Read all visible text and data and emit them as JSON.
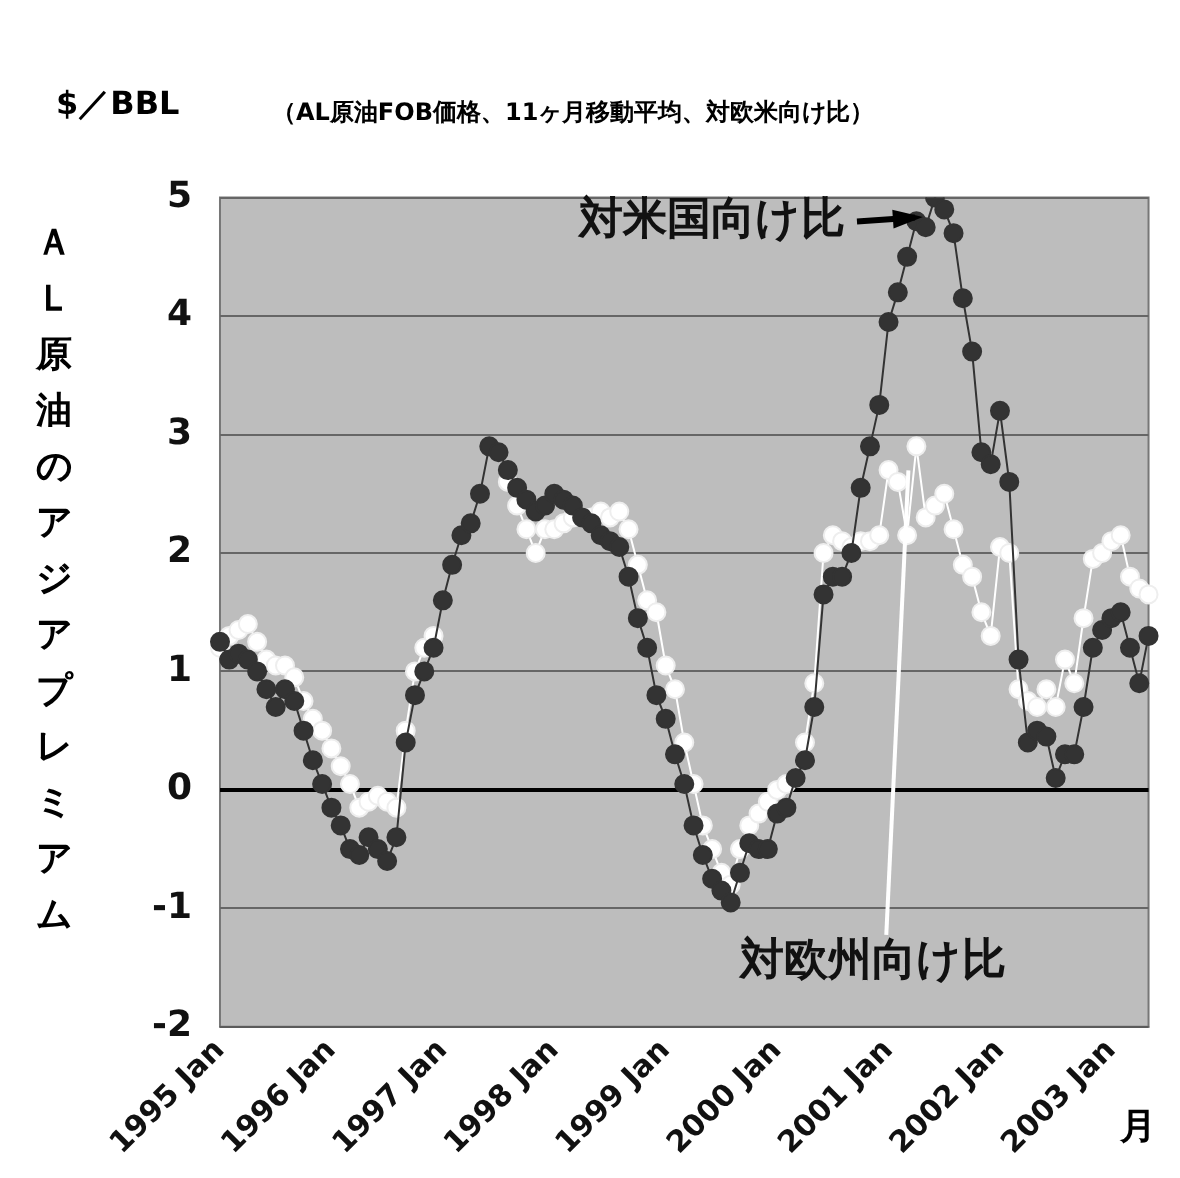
{
  "chart_data": {
    "type": "line",
    "title": "$／BBL",
    "subtitle": "（AL原油FOB価格、11ヶ月移動平均、対欧米向け比）",
    "ylabel": "ＡＬ原油のアジアプレミアム",
    "xlabel": "月",
    "categories": [
      "1995 Jan",
      null,
      null,
      null,
      null,
      null,
      null,
      null,
      null,
      null,
      null,
      null,
      "1996 Jan",
      null,
      null,
      null,
      null,
      null,
      null,
      null,
      null,
      null,
      null,
      null,
      "1997 Jan",
      null,
      null,
      null,
      null,
      null,
      null,
      null,
      null,
      null,
      null,
      null,
      "1998 Jan",
      null,
      null,
      null,
      null,
      null,
      null,
      null,
      null,
      null,
      null,
      null,
      "1999 Jan",
      null,
      null,
      null,
      null,
      null,
      null,
      null,
      null,
      null,
      null,
      null,
      "2000 Jan",
      null,
      null,
      null,
      null,
      null,
      null,
      null,
      null,
      null,
      null,
      null,
      "2001 Jan",
      null,
      null,
      null,
      null,
      null,
      null,
      null,
      null,
      null,
      null,
      null,
      "2002 Jan",
      null,
      null,
      null,
      null,
      null,
      null,
      null,
      null,
      null,
      null,
      null,
      "2003 Jan",
      null,
      null,
      null,
      null
    ],
    "series": [
      {
        "name": "対欧州向け比",
        "color": "#ffffff",
        "values": [
          1.2,
          1.3,
          1.35,
          1.4,
          1.25,
          1.1,
          1.05,
          1.05,
          0.95,
          0.75,
          0.6,
          0.5,
          0.35,
          0.2,
          0.05,
          -0.15,
          -0.1,
          -0.05,
          -0.1,
          -0.15,
          0.5,
          1.0,
          1.2,
          1.3,
          null,
          null,
          null,
          null,
          null,
          null,
          null,
          2.6,
          2.4,
          2.2,
          2.0,
          2.2,
          2.2,
          2.25,
          2.3,
          2.3,
          2.3,
          2.35,
          2.3,
          2.35,
          2.2,
          1.9,
          1.6,
          1.5,
          1.05,
          0.85,
          0.4,
          0.05,
          -0.3,
          -0.5,
          -0.7,
          -0.8,
          -0.5,
          -0.3,
          -0.2,
          -0.1,
          0.0,
          0.05,
          0.1,
          0.4,
          0.9,
          2.0,
          2.15,
          2.1,
          2.05,
          2.1,
          2.1,
          2.15,
          2.7,
          2.6,
          2.15,
          2.9,
          2.3,
          2.4,
          2.5,
          2.2,
          1.9,
          1.8,
          1.5,
          1.3,
          2.05,
          2.0,
          0.85,
          0.75,
          0.7,
          0.85,
          0.7,
          1.1,
          0.9,
          1.45,
          1.95,
          2.0,
          2.1,
          2.15,
          1.8,
          1.7,
          1.65
        ]
      },
      {
        "name": "対米国向け比",
        "color": "#333333",
        "values": [
          1.25,
          1.1,
          1.15,
          1.1,
          1.0,
          0.85,
          0.7,
          0.85,
          0.75,
          0.5,
          0.25,
          0.05,
          -0.15,
          -0.3,
          -0.5,
          -0.55,
          -0.4,
          -0.5,
          -0.6,
          -0.4,
          0.4,
          0.8,
          1.0,
          1.2,
          1.6,
          1.9,
          2.15,
          2.25,
          2.5,
          2.9,
          2.85,
          2.7,
          2.55,
          2.45,
          2.35,
          2.4,
          2.5,
          2.45,
          2.4,
          2.3,
          2.25,
          2.15,
          2.1,
          2.05,
          1.8,
          1.45,
          1.2,
          0.8,
          0.6,
          0.3,
          0.05,
          -0.3,
          -0.55,
          -0.75,
          -0.85,
          -0.95,
          -0.7,
          -0.45,
          -0.5,
          -0.5,
          -0.2,
          -0.15,
          0.1,
          0.25,
          0.7,
          1.65,
          1.8,
          1.8,
          2.0,
          2.55,
          2.9,
          3.25,
          3.95,
          4.2,
          4.5,
          4.8,
          4.75,
          5.0,
          4.9,
          4.7,
          4.15,
          3.7,
          2.85,
          2.75,
          3.2,
          2.6,
          1.1,
          0.4,
          0.5,
          0.45,
          0.1,
          0.3,
          0.3,
          0.7,
          1.2,
          1.35,
          1.45,
          1.5,
          1.2,
          0.9,
          1.3
        ]
      }
    ],
    "ylim": [
      -2,
      5
    ],
    "yticks": [
      -2,
      -1,
      0,
      1,
      2,
      3,
      4,
      5
    ],
    "grid": "y",
    "legend": false,
    "marker": "circle",
    "line_style": "solid"
  }
}
